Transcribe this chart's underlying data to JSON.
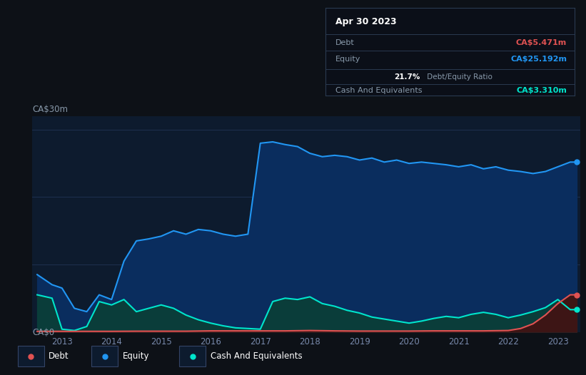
{
  "bg_color": "#0d1117",
  "plot_bg_color": "#0d1b2e",
  "title": "Apr 30 2023",
  "tooltip": {
    "debt_label": "Debt",
    "debt_value": "CA$5.471m",
    "equity_label": "Equity",
    "equity_value": "CA$25.192m",
    "ratio_text": "21.7% Debt/Equity Ratio",
    "ratio_bold": "21.7%",
    "ratio_rest": " Debt/Equity Ratio",
    "cash_label": "Cash And Equivalents",
    "cash_value": "CA$3.310m"
  },
  "ylabel_top": "CA$30m",
  "ylabel_bottom": "CA$0",
  "x_ticks": [
    "2013",
    "2014",
    "2015",
    "2016",
    "2017",
    "2018",
    "2019",
    "2020",
    "2021",
    "2022",
    "2023"
  ],
  "equity_color": "#2196f3",
  "equity_fill": "#0a2d5e",
  "cash_color": "#00e5cc",
  "cash_fill": "#0a3d3a",
  "debt_color": "#e05252",
  "debt_fill": "#3d1515",
  "legend_bg": "#111b2b",
  "grid_color": "#1e3050",
  "equity_data": [
    [
      2012.5,
      8.5
    ],
    [
      2012.8,
      7.0
    ],
    [
      2013.0,
      6.5
    ],
    [
      2013.25,
      3.5
    ],
    [
      2013.5,
      3.0
    ],
    [
      2013.75,
      5.5
    ],
    [
      2014.0,
      4.8
    ],
    [
      2014.25,
      10.5
    ],
    [
      2014.5,
      13.5
    ],
    [
      2014.75,
      13.8
    ],
    [
      2015.0,
      14.2
    ],
    [
      2015.25,
      15.0
    ],
    [
      2015.5,
      14.5
    ],
    [
      2015.75,
      15.2
    ],
    [
      2016.0,
      15.0
    ],
    [
      2016.25,
      14.5
    ],
    [
      2016.5,
      14.2
    ],
    [
      2016.75,
      14.5
    ],
    [
      2017.0,
      28.0
    ],
    [
      2017.25,
      28.2
    ],
    [
      2017.5,
      27.8
    ],
    [
      2017.75,
      27.5
    ],
    [
      2018.0,
      26.5
    ],
    [
      2018.25,
      26.0
    ],
    [
      2018.5,
      26.2
    ],
    [
      2018.75,
      26.0
    ],
    [
      2019.0,
      25.5
    ],
    [
      2019.25,
      25.8
    ],
    [
      2019.5,
      25.2
    ],
    [
      2019.75,
      25.5
    ],
    [
      2020.0,
      25.0
    ],
    [
      2020.25,
      25.2
    ],
    [
      2020.5,
      25.0
    ],
    [
      2020.75,
      24.8
    ],
    [
      2021.0,
      24.5
    ],
    [
      2021.25,
      24.8
    ],
    [
      2021.5,
      24.2
    ],
    [
      2021.75,
      24.5
    ],
    [
      2022.0,
      24.0
    ],
    [
      2022.25,
      23.8
    ],
    [
      2022.5,
      23.5
    ],
    [
      2022.75,
      23.8
    ],
    [
      2023.0,
      24.5
    ],
    [
      2023.25,
      25.2
    ],
    [
      2023.38,
      25.2
    ]
  ],
  "cash_data": [
    [
      2012.5,
      5.5
    ],
    [
      2012.8,
      5.0
    ],
    [
      2013.0,
      0.4
    ],
    [
      2013.25,
      0.2
    ],
    [
      2013.5,
      0.8
    ],
    [
      2013.75,
      4.5
    ],
    [
      2014.0,
      4.0
    ],
    [
      2014.25,
      4.8
    ],
    [
      2014.5,
      3.0
    ],
    [
      2014.75,
      3.5
    ],
    [
      2015.0,
      4.0
    ],
    [
      2015.25,
      3.5
    ],
    [
      2015.5,
      2.5
    ],
    [
      2015.75,
      1.8
    ],
    [
      2016.0,
      1.3
    ],
    [
      2016.25,
      0.9
    ],
    [
      2016.5,
      0.6
    ],
    [
      2016.75,
      0.5
    ],
    [
      2017.0,
      0.4
    ],
    [
      2017.25,
      4.5
    ],
    [
      2017.5,
      5.0
    ],
    [
      2017.75,
      4.8
    ],
    [
      2018.0,
      5.2
    ],
    [
      2018.25,
      4.2
    ],
    [
      2018.5,
      3.8
    ],
    [
      2018.75,
      3.2
    ],
    [
      2019.0,
      2.8
    ],
    [
      2019.25,
      2.2
    ],
    [
      2019.5,
      1.9
    ],
    [
      2019.75,
      1.6
    ],
    [
      2020.0,
      1.3
    ],
    [
      2020.25,
      1.6
    ],
    [
      2020.5,
      2.0
    ],
    [
      2020.75,
      2.3
    ],
    [
      2021.0,
      2.1
    ],
    [
      2021.25,
      2.6
    ],
    [
      2021.5,
      2.9
    ],
    [
      2021.75,
      2.6
    ],
    [
      2022.0,
      2.1
    ],
    [
      2022.25,
      2.5
    ],
    [
      2022.5,
      3.0
    ],
    [
      2022.75,
      3.6
    ],
    [
      2023.0,
      4.8
    ],
    [
      2023.25,
      3.3
    ],
    [
      2023.38,
      3.3
    ]
  ],
  "debt_data": [
    [
      2012.5,
      0.08
    ],
    [
      2013.0,
      0.08
    ],
    [
      2013.5,
      0.08
    ],
    [
      2014.0,
      0.08
    ],
    [
      2014.5,
      0.1
    ],
    [
      2015.0,
      0.1
    ],
    [
      2015.5,
      0.1
    ],
    [
      2016.0,
      0.15
    ],
    [
      2016.5,
      0.15
    ],
    [
      2017.0,
      0.15
    ],
    [
      2017.5,
      0.15
    ],
    [
      2018.0,
      0.2
    ],
    [
      2018.5,
      0.15
    ],
    [
      2019.0,
      0.12
    ],
    [
      2019.5,
      0.12
    ],
    [
      2020.0,
      0.12
    ],
    [
      2020.5,
      0.15
    ],
    [
      2021.0,
      0.15
    ],
    [
      2021.5,
      0.15
    ],
    [
      2022.0,
      0.2
    ],
    [
      2022.25,
      0.5
    ],
    [
      2022.5,
      1.2
    ],
    [
      2022.75,
      2.5
    ],
    [
      2023.0,
      4.2
    ],
    [
      2023.25,
      5.5
    ],
    [
      2023.38,
      5.5
    ]
  ],
  "xmin": 2012.4,
  "xmax": 2023.45,
  "ymin": 0,
  "ymax": 32
}
